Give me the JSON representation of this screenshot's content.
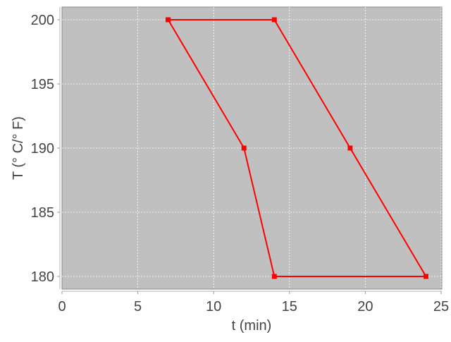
{
  "chart_data": {
    "type": "line",
    "title": "",
    "xlabel": "t (min)",
    "ylabel": "T (° C/° F)",
    "xlim": [
      0,
      25.1
    ],
    "ylim": [
      179,
      201
    ],
    "xticks": [
      "0",
      "5",
      "10",
      "15",
      "20",
      "25"
    ],
    "yticks": [
      "180",
      "185",
      "190",
      "195",
      "200"
    ],
    "grid": true,
    "closed": true,
    "series": [
      {
        "x": [
          7,
          14,
          19,
          24,
          14,
          12,
          7
        ],
        "y": [
          200,
          200,
          190,
          180,
          180,
          190,
          200
        ],
        "color": "#ff0000",
        "marker": "square"
      }
    ],
    "plot_background": "#c0c0c0"
  }
}
